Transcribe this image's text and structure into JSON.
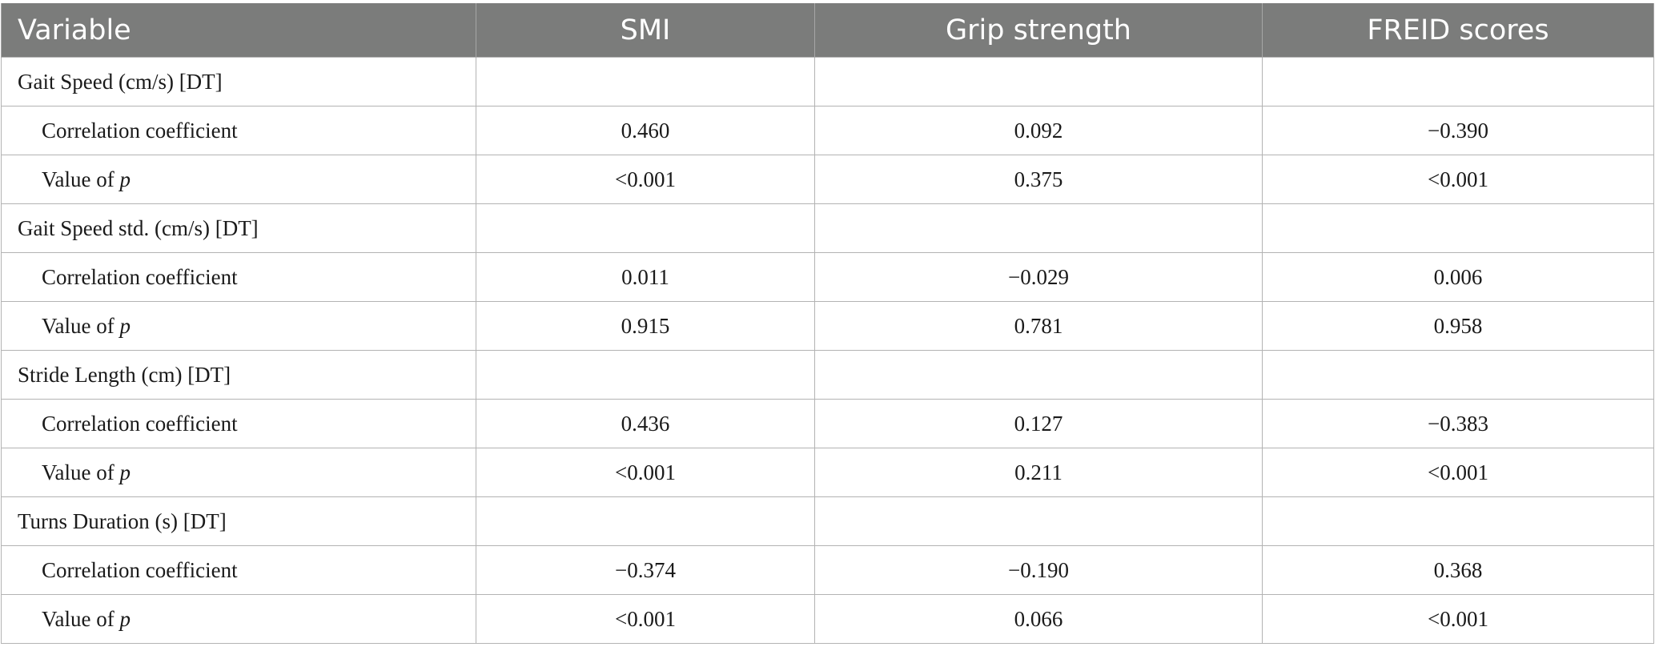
{
  "table": {
    "headers": [
      "Variable",
      "SMI",
      "Grip strength",
      "FREID scores"
    ],
    "groups": [
      {
        "label": "Gait Speed (cm/s) [DT]",
        "coef_label": "Correlation coefficient",
        "p_label_prefix": "Value of ",
        "p_label_italic": "p",
        "coef": [
          "0.460",
          "0.092",
          "−0.390"
        ],
        "p": [
          "<0.001",
          "0.375",
          "<0.001"
        ]
      },
      {
        "label": "Gait Speed std. (cm/s) [DT]",
        "coef_label": "Correlation coefficient",
        "p_label_prefix": "Value of ",
        "p_label_italic": "p",
        "coef": [
          "0.011",
          "−0.029",
          "0.006"
        ],
        "p": [
          "0.915",
          "0.781",
          "0.958"
        ]
      },
      {
        "label": "Stride Length (cm) [DT]",
        "coef_label": "Correlation coefficient",
        "p_label_prefix": "Value of ",
        "p_label_italic": "p",
        "coef": [
          "0.436",
          "0.127",
          "−0.383"
        ],
        "p": [
          "<0.001",
          "0.211",
          "<0.001"
        ]
      },
      {
        "label": "Turns Duration (s) [DT]",
        "coef_label": "Correlation coefficient",
        "p_label_prefix": "Value of ",
        "p_label_italic": "p",
        "coef": [
          "−0.374",
          "−0.190",
          "0.368"
        ],
        "p": [
          "<0.001",
          "0.066",
          "<0.001"
        ]
      }
    ]
  }
}
